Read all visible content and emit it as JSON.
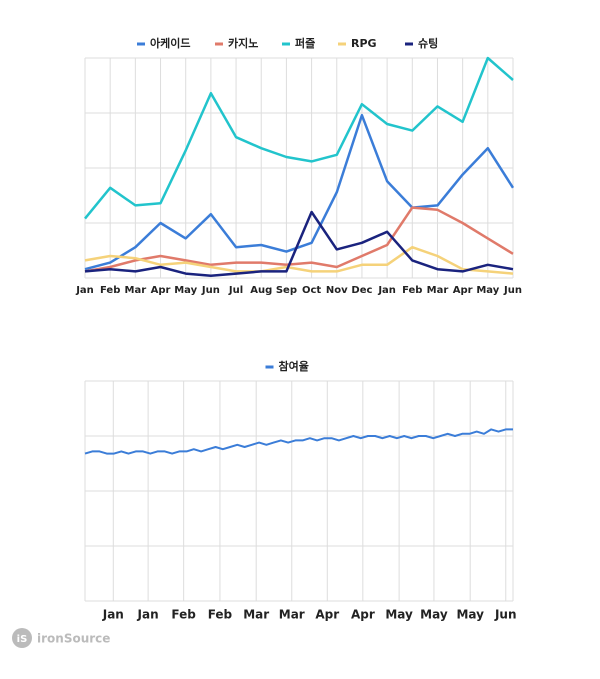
{
  "chart_data": [
    {
      "type": "line",
      "categories": [
        "Jan",
        "Feb",
        "Mar",
        "Apr",
        "May",
        "Jun",
        "Jul",
        "Aug",
        "Sep",
        "Oct",
        "Nov",
        "Dec",
        "Jan",
        "Feb",
        "Mar",
        "Apr",
        "May",
        "Jun"
      ],
      "series": [
        {
          "name": "아케이드",
          "color": "#3b7dd8",
          "values": [
            4,
            7,
            14,
            25,
            18,
            29,
            14,
            15,
            12,
            16,
            39,
            74,
            44,
            32,
            33,
            47,
            59,
            41
          ]
        },
        {
          "name": "카지노",
          "color": "#e07a6a",
          "values": [
            3,
            5,
            8,
            10,
            8,
            6,
            7,
            7,
            6,
            7,
            5,
            10,
            15,
            32,
            31,
            25,
            18,
            11
          ]
        },
        {
          "name": "퍼즐",
          "color": "#22c4cc",
          "values": [
            27,
            41,
            33,
            34,
            58,
            84,
            64,
            59,
            55,
            53,
            56,
            79,
            70,
            67,
            78,
            71,
            100,
            90
          ]
        },
        {
          "name": "RPG",
          "color": "#f5d27a",
          "values": [
            8,
            10,
            9,
            6,
            7,
            5,
            3,
            3,
            5,
            3,
            3,
            6,
            6,
            14,
            10,
            4,
            3,
            2
          ]
        },
        {
          "name": "슈팅",
          "color": "#1a237e",
          "values": [
            3,
            4,
            3,
            5,
            2,
            1,
            2,
            3,
            3,
            30,
            13,
            16,
            21,
            8,
            4,
            3,
            6,
            4
          ]
        }
      ],
      "ylim": [
        0,
        100
      ],
      "yticks": [
        0,
        25,
        50,
        75,
        100
      ],
      "grid": true
    },
    {
      "type": "line",
      "xlim": [
        0,
        59
      ],
      "xticks": [
        {
          "value": 3.9,
          "label": "Jan"
        },
        {
          "value": 8.7,
          "label": "Jan"
        },
        {
          "value": 13.6,
          "label": "Feb"
        },
        {
          "value": 18.6,
          "label": "Feb"
        },
        {
          "value": 23.6,
          "label": "Mar"
        },
        {
          "value": 28.5,
          "label": "Mar"
        },
        {
          "value": 33.4,
          "label": "Apr"
        },
        {
          "value": 38.3,
          "label": "Apr"
        },
        {
          "value": 43.3,
          "label": "May"
        },
        {
          "value": 48.1,
          "label": "May"
        },
        {
          "value": 53.1,
          "label": "May"
        },
        {
          "value": 58.0,
          "label": "Jun"
        }
      ],
      "x": [
        0,
        1,
        2,
        3,
        4,
        5,
        6,
        7,
        8,
        9,
        10,
        11,
        12,
        13,
        14,
        15,
        16,
        17,
        18,
        19,
        20,
        21,
        22,
        23,
        24,
        25,
        26,
        27,
        28,
        29,
        30,
        31,
        32,
        33,
        34,
        35,
        36,
        37,
        38,
        39,
        40,
        41,
        42,
        43,
        44,
        45,
        46,
        47,
        48,
        49,
        50,
        51,
        52,
        53,
        54,
        55,
        56,
        57,
        58,
        59
      ],
      "series": [
        {
          "name": "참여율",
          "color": "#3b7dd8",
          "values": [
            67,
            68,
            68,
            67,
            67,
            68,
            67,
            68,
            68,
            67,
            68,
            68,
            67,
            68,
            68,
            69,
            68,
            69,
            70,
            69,
            70,
            71,
            70,
            71,
            72,
            71,
            72,
            73,
            72,
            73,
            73,
            74,
            73,
            74,
            74,
            73,
            74,
            75,
            74,
            75,
            75,
            74,
            75,
            74,
            75,
            74,
            75,
            75,
            74,
            75,
            76,
            75,
            76,
            76,
            77,
            76,
            78,
            77,
            78,
            78
          ]
        }
      ],
      "ylim": [
        0,
        100
      ],
      "yticks": [
        0,
        25,
        50,
        75,
        100
      ],
      "grid": true
    }
  ],
  "footer": {
    "logo": "iS",
    "brand": "ironSource"
  }
}
